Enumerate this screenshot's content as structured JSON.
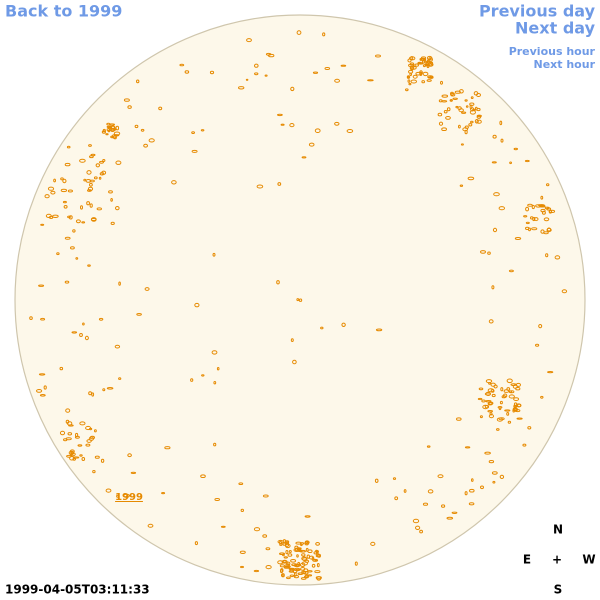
{
  "nav": {
    "back": "Back to 1999",
    "previous_day": "Previous day",
    "next_day": "Next day",
    "previous_hour": "Previous hour",
    "next_hour": "Next hour"
  },
  "timestamp": "1999-04-05T03:11:33",
  "compass": {
    "north": "N",
    "east": "E",
    "center": "+",
    "west": "W",
    "south": "S"
  },
  "disk_label": "1999"
}
